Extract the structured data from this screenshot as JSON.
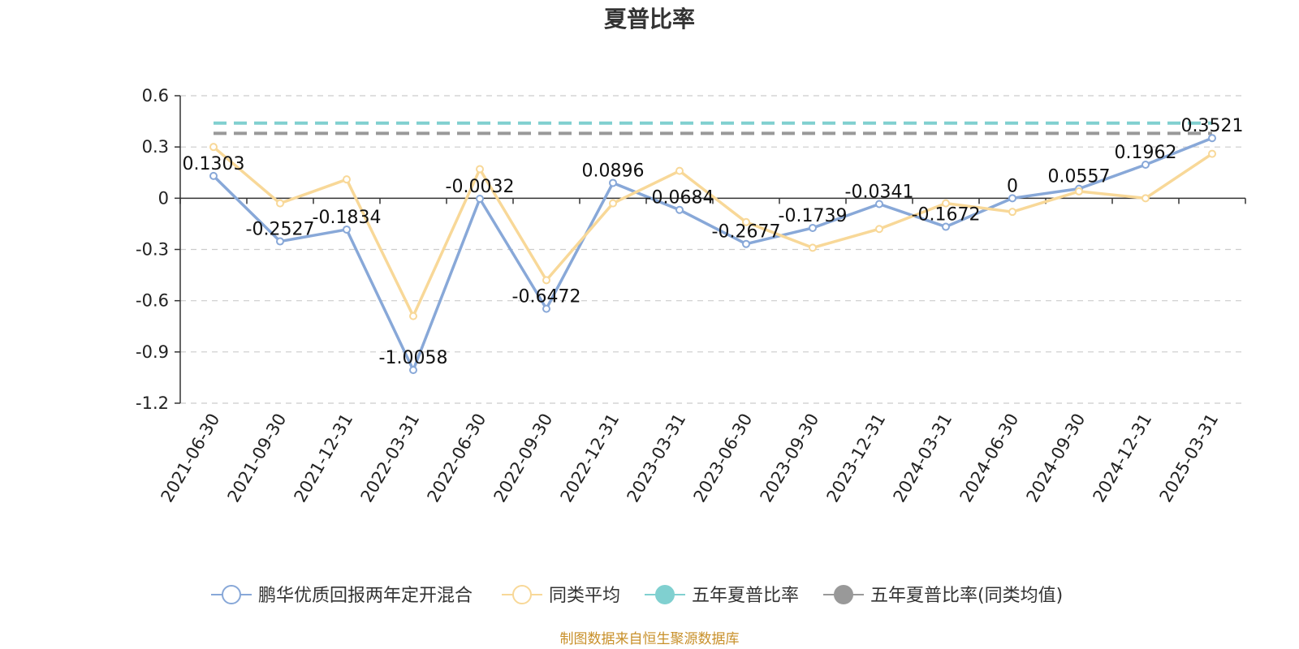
{
  "chart_data": {
    "type": "line",
    "title": "夏普比率",
    "categories": [
      "2021-06-30",
      "2021-09-30",
      "2021-12-31",
      "2022-03-31",
      "2022-06-30",
      "2022-09-30",
      "2022-12-31",
      "2023-03-31",
      "2023-06-30",
      "2023-09-30",
      "2023-12-31",
      "2024-03-31",
      "2024-06-30",
      "2024-09-30",
      "2024-12-31",
      "2025-03-31"
    ],
    "ylim": [
      -1.2,
      0.6
    ],
    "yticks": [
      "0.6",
      "0.3",
      "0",
      "-0.3",
      "-0.6",
      "-0.9",
      "-1.2"
    ],
    "grid": true,
    "legend_position": "bottom",
    "series": [
      {
        "name": "鹏华优质回报两年定开混合",
        "color": "#88a8d8",
        "values": [
          0.1303,
          -0.2527,
          -0.1834,
          -1.0058,
          -0.0032,
          -0.6472,
          0.0896,
          -0.0684,
          -0.2677,
          -0.1739,
          -0.0341,
          -0.1672,
          0,
          0.0557,
          0.1962,
          0.3521
        ],
        "labels": [
          "0.1303",
          "-0.2527",
          "-0.1834",
          "-1.0058",
          "-0.0032",
          "-0.6472",
          "0.0896",
          "-0.0684",
          "-0.2677",
          "-0.1739",
          "-0.0341",
          "-0.1672",
          "0",
          "0.0557",
          "0.1962",
          "0.3521"
        ]
      },
      {
        "name": "同类平均",
        "color": "#f8d898",
        "values": [
          0.3,
          -0.03,
          0.11,
          -0.69,
          0.17,
          -0.48,
          -0.03,
          0.16,
          -0.14,
          -0.29,
          -0.18,
          -0.03,
          -0.08,
          0.04,
          0.0,
          0.26
        ]
      },
      {
        "name": "五年夏普比率",
        "color": "#80d0d0",
        "dashed": true,
        "value": 0.44
      },
      {
        "name": "五年夏普比率(同类均值)",
        "color": "#999999",
        "dashed": true,
        "value": 0.38
      }
    ],
    "source": "制图数据来自恒生聚源数据库"
  }
}
